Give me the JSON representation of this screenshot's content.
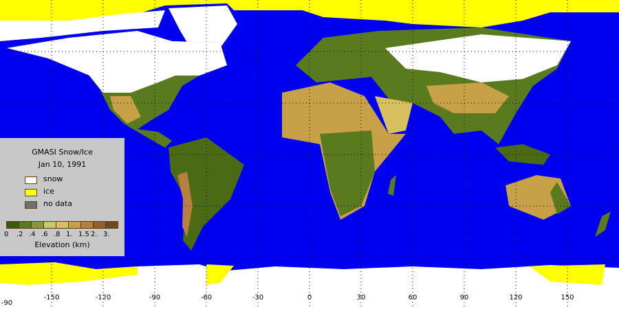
{
  "legend": {
    "title": "GMASI Snow/Ice",
    "date": "Jan 10, 1991",
    "items": [
      {
        "label": "snow",
        "color": "#ffffff"
      },
      {
        "label": "ice",
        "color": "#ffff00"
      },
      {
        "label": "no data",
        "color": "#707070"
      }
    ],
    "elevation_colors": [
      "#3a5a0a",
      "#5a7a1e",
      "#88983a",
      "#c8c870",
      "#d8c060",
      "#c8a048",
      "#b88040",
      "#906028",
      "#6a4a20"
    ],
    "elevation_ticks": [
      "0",
      ".2",
      ".4",
      ".6",
      ".8",
      "1.",
      "1.5",
      "2.",
      "3."
    ],
    "elevation_label": "Elevation (km)"
  },
  "map": {
    "ocean_color": "#0000f0",
    "lon_ticks": [
      "-150",
      "-120",
      "-90",
      "-60",
      "-30",
      "0",
      "30",
      "60",
      "90",
      "120",
      "150"
    ],
    "lat_tick": "-90"
  }
}
